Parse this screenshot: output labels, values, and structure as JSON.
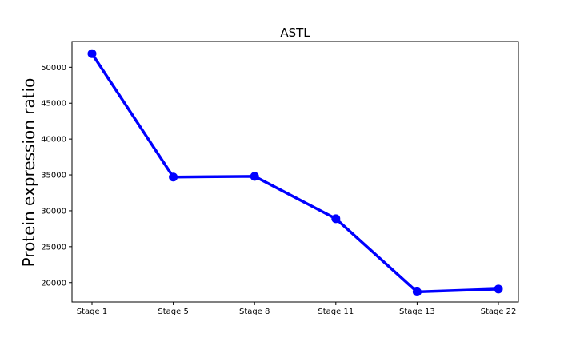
{
  "chart_data": {
    "type": "line",
    "title": "ASTL",
    "xlabel": "",
    "ylabel": "Protein expression ratio",
    "categories": [
      "Stage 1",
      "Stage 5",
      "Stage 8",
      "Stage 11",
      "Stage 13",
      "Stage 22"
    ],
    "series": [
      {
        "values": [
          51900,
          34700,
          34800,
          28900,
          18700,
          19100
        ]
      }
    ],
    "yticks": [
      20000,
      25000,
      30000,
      35000,
      40000,
      45000,
      50000
    ],
    "ylim": [
      17300,
      53600
    ],
    "grid": false,
    "legend": "none",
    "colors": {
      "line": "#0000ff",
      "marker": "#0000ff"
    }
  }
}
